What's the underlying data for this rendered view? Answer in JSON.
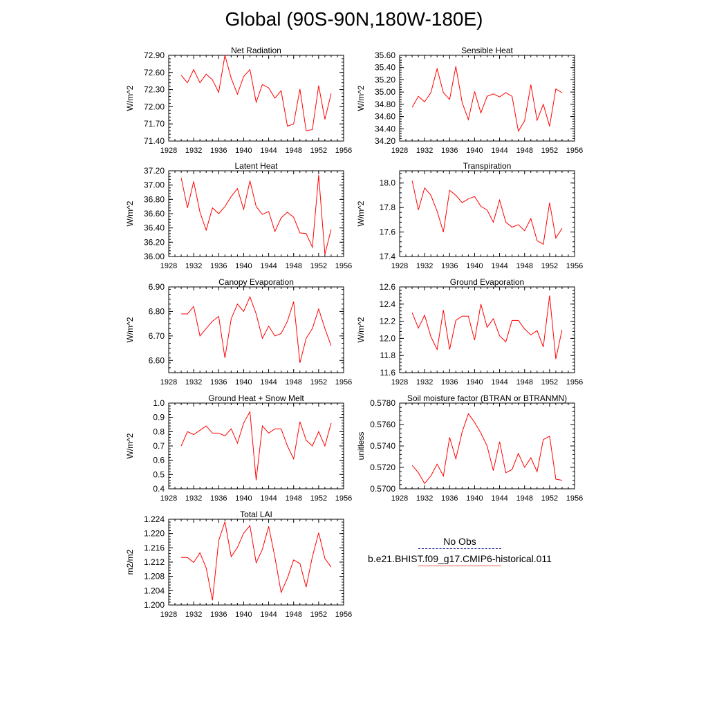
{
  "title": "Global (90S-90N,180W-180E)",
  "legend": {
    "obs_label": "No Obs",
    "model_label": "b.e21.BHIST.f09_g17.CMIP6-historical.011",
    "obs_color": "#1a1a8c",
    "model_color": "#ff0000"
  },
  "chart_data": [
    {
      "type": "line",
      "title": "Net Radiation",
      "ylabel": "W/m^2",
      "xlim": [
        1928,
        1956
      ],
      "xticks": [
        "1928",
        "1932",
        "1936",
        "1940",
        "1944",
        "1948",
        "1952",
        "1956"
      ],
      "ylim": [
        71.4,
        72.9
      ],
      "yticks": [
        "71.40",
        "71.70",
        "72.00",
        "72.30",
        "72.60",
        "72.90"
      ],
      "x": [
        1930,
        1931,
        1932,
        1933,
        1934,
        1935,
        1936,
        1937,
        1938,
        1939,
        1940,
        1941,
        1942,
        1943,
        1944,
        1945,
        1946,
        1947,
        1948,
        1949,
        1950,
        1951,
        1952,
        1953,
        1954
      ],
      "series": [
        {
          "name": "b.e21.BHIST.f09_g17.CMIP6-historical.011",
          "values": [
            72.55,
            72.42,
            72.65,
            72.42,
            72.57,
            72.47,
            72.25,
            72.9,
            72.5,
            72.22,
            72.53,
            72.65,
            72.08,
            72.39,
            72.33,
            72.15,
            72.28,
            71.66,
            71.7,
            72.31,
            71.58,
            71.6,
            72.37,
            71.78,
            72.23
          ]
        }
      ]
    },
    {
      "type": "line",
      "title": "Sensible Heat",
      "ylabel": "W/m^2",
      "xlim": [
        1928,
        1956
      ],
      "xticks": [
        "1928",
        "1932",
        "1936",
        "1940",
        "1944",
        "1948",
        "1952",
        "1956"
      ],
      "ylim": [
        34.2,
        35.6
      ],
      "yticks": [
        "34.20",
        "34.40",
        "34.60",
        "34.80",
        "35.00",
        "35.20",
        "35.40",
        "35.60"
      ],
      "x": [
        1930,
        1931,
        1932,
        1933,
        1934,
        1935,
        1936,
        1937,
        1938,
        1939,
        1940,
        1941,
        1942,
        1943,
        1944,
        1945,
        1946,
        1947,
        1948,
        1949,
        1950,
        1951,
        1952,
        1953,
        1954
      ],
      "series": [
        {
          "name": "b.e21.BHIST.f09_g17.CMIP6-historical.011",
          "values": [
            34.75,
            34.93,
            34.84,
            34.99,
            35.38,
            34.99,
            34.88,
            35.42,
            34.83,
            34.55,
            35.01,
            34.66,
            34.93,
            34.97,
            34.92,
            34.99,
            34.93,
            34.36,
            34.53,
            35.12,
            34.54,
            34.8,
            34.44,
            35.05,
            34.99
          ]
        }
      ]
    },
    {
      "type": "line",
      "title": "Latent Heat",
      "ylabel": "W/m^2",
      "xlim": [
        1928,
        1956
      ],
      "xticks": [
        "1928",
        "1932",
        "1936",
        "1940",
        "1944",
        "1948",
        "1952",
        "1956"
      ],
      "ylim": [
        36.0,
        37.2
      ],
      "yticks": [
        "36.00",
        "36.20",
        "36.40",
        "36.60",
        "36.80",
        "37.00",
        "37.20"
      ],
      "x": [
        1930,
        1931,
        1932,
        1933,
        1934,
        1935,
        1936,
        1937,
        1938,
        1939,
        1940,
        1941,
        1942,
        1943,
        1944,
        1945,
        1946,
        1947,
        1948,
        1949,
        1950,
        1951,
        1952,
        1953,
        1954
      ],
      "series": [
        {
          "name": "b.e21.BHIST.f09_g17.CMIP6-historical.011",
          "values": [
            37.1,
            36.68,
            37.05,
            36.62,
            36.37,
            36.68,
            36.6,
            36.7,
            36.84,
            36.95,
            36.66,
            37.06,
            36.7,
            36.59,
            36.63,
            36.35,
            36.54,
            36.62,
            36.55,
            36.33,
            36.32,
            36.13,
            37.14,
            36.03,
            36.38
          ]
        }
      ]
    },
    {
      "type": "line",
      "title": "Transpiration",
      "ylabel": "W/m^2",
      "xlim": [
        1928,
        1956
      ],
      "xticks": [
        "1928",
        "1932",
        "1936",
        "1940",
        "1944",
        "1948",
        "1952",
        "1956"
      ],
      "ylim": [
        17.4,
        18.1
      ],
      "yticks": [
        "17.4",
        "17.6",
        "17.8",
        "18.0"
      ],
      "x": [
        1930,
        1931,
        1932,
        1933,
        1934,
        1935,
        1936,
        1937,
        1938,
        1939,
        1940,
        1941,
        1942,
        1943,
        1944,
        1945,
        1946,
        1947,
        1948,
        1949,
        1950,
        1951,
        1952,
        1953,
        1954
      ],
      "series": [
        {
          "name": "b.e21.BHIST.f09_g17.CMIP6-historical.011",
          "values": [
            18.02,
            17.78,
            17.96,
            17.9,
            17.77,
            17.6,
            17.94,
            17.9,
            17.84,
            17.87,
            17.89,
            17.81,
            17.78,
            17.68,
            17.86,
            17.68,
            17.64,
            17.66,
            17.61,
            17.71,
            17.53,
            17.5,
            17.84,
            17.55,
            17.63
          ]
        }
      ]
    },
    {
      "type": "line",
      "title": "Canopy Evaporation",
      "ylabel": "W/m^2",
      "xlim": [
        1928,
        1956
      ],
      "xticks": [
        "1928",
        "1932",
        "1936",
        "1940",
        "1944",
        "1948",
        "1952",
        "1956"
      ],
      "ylim": [
        6.55,
        6.9
      ],
      "yticks": [
        "6.60",
        "6.70",
        "6.80",
        "6.90"
      ],
      "x": [
        1930,
        1931,
        1932,
        1933,
        1934,
        1935,
        1936,
        1937,
        1938,
        1939,
        1940,
        1941,
        1942,
        1943,
        1944,
        1945,
        1946,
        1947,
        1948,
        1949,
        1950,
        1951,
        1952,
        1953,
        1954
      ],
      "series": [
        {
          "name": "b.e21.BHIST.f09_g17.CMIP6-historical.011",
          "values": [
            6.79,
            6.79,
            6.82,
            6.7,
            6.73,
            6.76,
            6.78,
            6.61,
            6.77,
            6.83,
            6.8,
            6.86,
            6.79,
            6.69,
            6.74,
            6.7,
            6.71,
            6.76,
            6.84,
            6.59,
            6.69,
            6.73,
            6.81,
            6.73,
            6.66
          ]
        }
      ]
    },
    {
      "type": "line",
      "title": "Ground Evaporation",
      "ylabel": "W/m^2",
      "xlim": [
        1928,
        1956
      ],
      "xticks": [
        "1928",
        "1932",
        "1936",
        "1940",
        "1944",
        "1948",
        "1952",
        "1956"
      ],
      "ylim": [
        11.6,
        12.6
      ],
      "yticks": [
        "11.6",
        "11.8",
        "12.0",
        "12.2",
        "12.4",
        "12.6"
      ],
      "x": [
        1930,
        1931,
        1932,
        1933,
        1934,
        1935,
        1936,
        1937,
        1938,
        1939,
        1940,
        1941,
        1942,
        1943,
        1944,
        1945,
        1946,
        1947,
        1948,
        1949,
        1950,
        1951,
        1952,
        1953,
        1954
      ],
      "series": [
        {
          "name": "b.e21.BHIST.f09_g17.CMIP6-historical.011",
          "values": [
            12.3,
            12.12,
            12.27,
            12.02,
            11.87,
            12.33,
            11.87,
            12.21,
            12.26,
            12.26,
            11.98,
            12.4,
            12.13,
            12.23,
            12.03,
            11.96,
            12.21,
            12.21,
            12.11,
            12.04,
            12.09,
            11.9,
            12.5,
            11.76,
            12.1
          ]
        }
      ]
    },
    {
      "type": "line",
      "title": "Ground Heat + Snow Melt",
      "ylabel": "W/m^2",
      "xlim": [
        1928,
        1956
      ],
      "xticks": [
        "1928",
        "1932",
        "1936",
        "1940",
        "1944",
        "1948",
        "1952",
        "1956"
      ],
      "ylim": [
        0.4,
        1.0
      ],
      "yticks": [
        "0.4",
        "0.5",
        "0.6",
        "0.7",
        "0.8",
        "0.9",
        "1.0"
      ],
      "x": [
        1930,
        1931,
        1932,
        1933,
        1934,
        1935,
        1936,
        1937,
        1938,
        1939,
        1940,
        1941,
        1942,
        1943,
        1944,
        1945,
        1946,
        1947,
        1948,
        1949,
        1950,
        1951,
        1952,
        1953,
        1954
      ],
      "series": [
        {
          "name": "b.e21.BHIST.f09_g17.CMIP6-historical.011",
          "values": [
            0.7,
            0.8,
            0.78,
            0.81,
            0.84,
            0.79,
            0.79,
            0.77,
            0.82,
            0.72,
            0.86,
            0.94,
            0.46,
            0.84,
            0.79,
            0.82,
            0.82,
            0.7,
            0.61,
            0.87,
            0.74,
            0.7,
            0.8,
            0.7,
            0.86
          ]
        }
      ]
    },
    {
      "type": "line",
      "title": "Soil moisture factor (BTRAN or BTRANMN)",
      "ylabel": "unitless",
      "xlim": [
        1928,
        1956
      ],
      "xticks": [
        "1928",
        "1932",
        "1936",
        "1940",
        "1944",
        "1948",
        "1952",
        "1956"
      ],
      "ylim": [
        0.57,
        0.578
      ],
      "yticks": [
        "0.5700",
        "0.5720",
        "0.5740",
        "0.5760",
        "0.5780"
      ],
      "x": [
        1930,
        1931,
        1932,
        1933,
        1934,
        1935,
        1936,
        1937,
        1938,
        1939,
        1940,
        1941,
        1942,
        1943,
        1944,
        1945,
        1946,
        1947,
        1948,
        1949,
        1950,
        1951,
        1952,
        1953,
        1954
      ],
      "series": [
        {
          "name": "b.e21.BHIST.f09_g17.CMIP6-historical.011",
          "values": [
            0.5722,
            0.5715,
            0.5705,
            0.5712,
            0.5723,
            0.5712,
            0.5748,
            0.5728,
            0.5753,
            0.577,
            0.5762,
            0.5752,
            0.574,
            0.5717,
            0.5744,
            0.5715,
            0.5718,
            0.5733,
            0.572,
            0.5729,
            0.5716,
            0.5746,
            0.5749,
            0.5709,
            0.5708
          ]
        }
      ]
    },
    {
      "type": "line",
      "title": "Total LAI",
      "ylabel": "m2/m2",
      "xlim": [
        1928,
        1956
      ],
      "xticks": [
        "1928",
        "1932",
        "1936",
        "1940",
        "1944",
        "1948",
        "1952",
        "1956"
      ],
      "ylim": [
        1.2,
        1.224
      ],
      "yticks": [
        "1.200",
        "1.204",
        "1.208",
        "1.212",
        "1.216",
        "1.220",
        "1.224"
      ],
      "x": [
        1930,
        1931,
        1932,
        1933,
        1934,
        1935,
        1936,
        1937,
        1938,
        1939,
        1940,
        1941,
        1942,
        1943,
        1944,
        1945,
        1946,
        1947,
        1948,
        1949,
        1950,
        1951,
        1952,
        1953,
        1954
      ],
      "series": [
        {
          "name": "b.e21.BHIST.f09_g17.CMIP6-historical.011",
          "values": [
            1.2133,
            1.2133,
            1.2119,
            1.2146,
            1.2104,
            1.2013,
            1.218,
            1.2233,
            1.2135,
            1.2161,
            1.2201,
            1.2222,
            1.2118,
            1.2156,
            1.222,
            1.2134,
            1.2035,
            1.2075,
            1.2126,
            1.2116,
            1.205,
            1.2135,
            1.2202,
            1.213,
            1.2106
          ]
        }
      ]
    }
  ]
}
